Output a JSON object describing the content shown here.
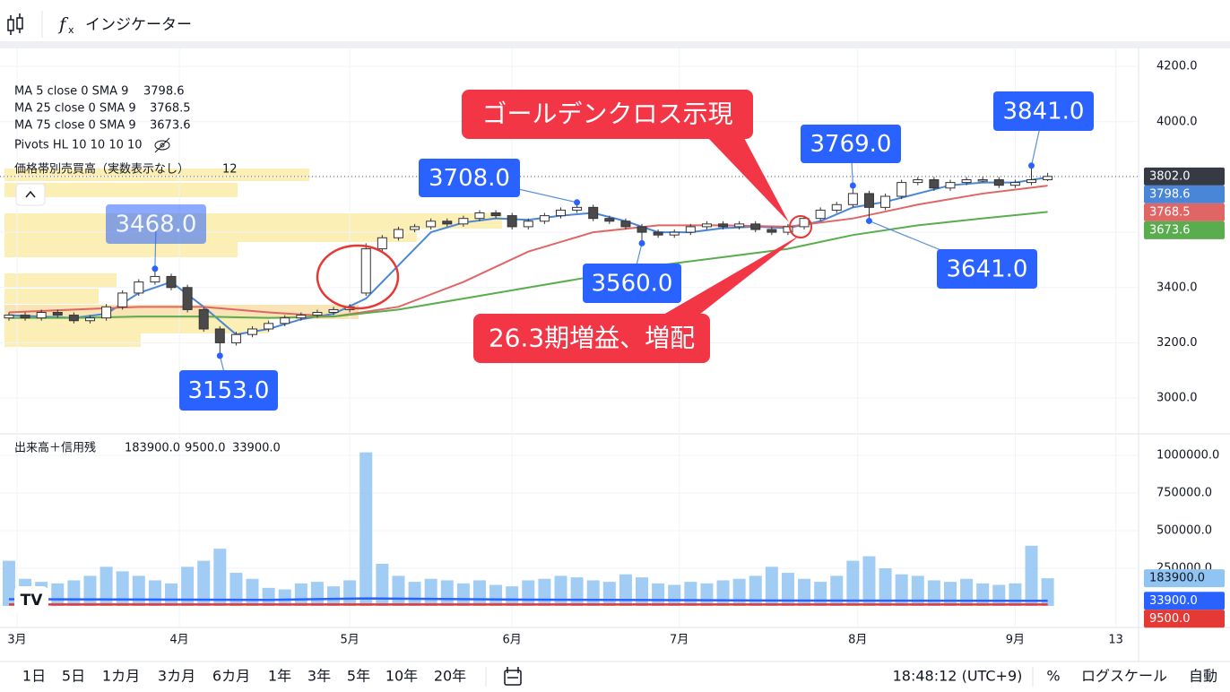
{
  "ui": {
    "indicators": "インジケーター",
    "ranges": [
      "1日",
      "5日",
      "1カ月",
      "3カ月",
      "6カ月",
      "1年",
      "3年",
      "5年",
      "10年",
      "20年"
    ],
    "clock": "18:48:12 (UTC+9)",
    "percent": "%",
    "log_scale": "ログスケール",
    "auto": "自動"
  },
  "chart_data": [
    {
      "type": "candlestick",
      "xlim": [
        -0.55,
        69.6
      ],
      "xticks": [
        {
          "value": 0.5,
          "label": "3月"
        },
        {
          "value": 10.5,
          "label": "4月"
        },
        {
          "value": 21,
          "label": "5月"
        },
        {
          "value": 31,
          "label": "6月"
        },
        {
          "value": 41.3,
          "label": "7月"
        },
        {
          "value": 52.3,
          "label": "8月"
        },
        {
          "value": 62,
          "label": "9月"
        },
        {
          "value": 68.2,
          "label": "13"
        }
      ],
      "ylim": [
        2877,
        4262
      ],
      "yticks": [
        {
          "value": 3000,
          "label": "3000.0"
        },
        {
          "value": 3200,
          "label": "3200.0"
        },
        {
          "value": 3400,
          "label": "3400.0"
        },
        {
          "value": 3600,
          "label": "3600.0"
        },
        {
          "value": 3800,
          "label": "3800.0"
        },
        {
          "value": 4000,
          "label": "4000.0"
        },
        {
          "value": 4200,
          "label": "4200.0"
        }
      ],
      "grid": true,
      "up_color": "#ffffff",
      "down_color": "#4a4a4a",
      "ohlc": [
        [
          3290,
          3310,
          3280,
          3300
        ],
        [
          3300,
          3310,
          3280,
          3290
        ],
        [
          3290,
          3320,
          3280,
          3310
        ],
        [
          3310,
          3320,
          3290,
          3300
        ],
        [
          3300,
          3310,
          3270,
          3280
        ],
        [
          3280,
          3300,
          3270,
          3290
        ],
        [
          3290,
          3340,
          3280,
          3330
        ],
        [
          3330,
          3390,
          3320,
          3380
        ],
        [
          3380,
          3430,
          3370,
          3420
        ],
        [
          3420,
          3468,
          3410,
          3440
        ],
        [
          3440,
          3450,
          3390,
          3400
        ],
        [
          3400,
          3410,
          3310,
          3320
        ],
        [
          3320,
          3330,
          3240,
          3250
        ],
        [
          3250,
          3260,
          3153,
          3200
        ],
        [
          3200,
          3240,
          3190,
          3230
        ],
        [
          3230,
          3260,
          3220,
          3250
        ],
        [
          3250,
          3280,
          3240,
          3270
        ],
        [
          3270,
          3300,
          3260,
          3290
        ],
        [
          3290,
          3310,
          3280,
          3300
        ],
        [
          3300,
          3320,
          3290,
          3310
        ],
        [
          3310,
          3330,
          3300,
          3320
        ],
        [
          3320,
          3340,
          3310,
          3330
        ],
        [
          3380,
          3560,
          3370,
          3540
        ],
        [
          3540,
          3590,
          3530,
          3580
        ],
        [
          3580,
          3620,
          3570,
          3610
        ],
        [
          3610,
          3630,
          3600,
          3620
        ],
        [
          3620,
          3650,
          3610,
          3640
        ],
        [
          3640,
          3650,
          3620,
          3630
        ],
        [
          3630,
          3660,
          3620,
          3650
        ],
        [
          3650,
          3680,
          3640,
          3670
        ],
        [
          3670,
          3680,
          3650,
          3660
        ],
        [
          3660,
          3670,
          3610,
          3620
        ],
        [
          3620,
          3650,
          3610,
          3640
        ],
        [
          3640,
          3670,
          3630,
          3660
        ],
        [
          3660,
          3690,
          3650,
          3680
        ],
        [
          3680,
          3708,
          3670,
          3690
        ],
        [
          3690,
          3700,
          3640,
          3650
        ],
        [
          3650,
          3660,
          3630,
          3640
        ],
        [
          3640,
          3650,
          3610,
          3620
        ],
        [
          3620,
          3630,
          3560,
          3600
        ],
        [
          3600,
          3610,
          3580,
          3590
        ],
        [
          3590,
          3610,
          3580,
          3600
        ],
        [
          3600,
          3630,
          3590,
          3620
        ],
        [
          3620,
          3640,
          3610,
          3630
        ],
        [
          3630,
          3640,
          3610,
          3620
        ],
        [
          3620,
          3640,
          3610,
          3630
        ],
        [
          3630,
          3640,
          3600,
          3610
        ],
        [
          3610,
          3620,
          3590,
          3600
        ],
        [
          3600,
          3630,
          3590,
          3620
        ],
        [
          3620,
          3660,
          3610,
          3650
        ],
        [
          3650,
          3690,
          3640,
          3680
        ],
        [
          3680,
          3710,
          3670,
          3700
        ],
        [
          3700,
          3769,
          3690,
          3740
        ],
        [
          3740,
          3750,
          3641,
          3690
        ],
        [
          3690,
          3740,
          3680,
          3730
        ],
        [
          3730,
          3790,
          3720,
          3780
        ],
        [
          3780,
          3800,
          3770,
          3790
        ],
        [
          3790,
          3800,
          3750,
          3760
        ],
        [
          3760,
          3790,
          3750,
          3780
        ],
        [
          3780,
          3800,
          3770,
          3790
        ],
        [
          3790,
          3800,
          3780,
          3790
        ],
        [
          3790,
          3800,
          3760,
          3770
        ],
        [
          3770,
          3790,
          3760,
          3780
        ],
        [
          3780,
          3841,
          3770,
          3790
        ],
        [
          3790,
          3815,
          3785,
          3802
        ]
      ],
      "last_label": "3802.0",
      "last_color": "#363a45",
      "ma": [
        {
          "name": "MA 5 close 0 SMA 9",
          "color": "#4a86d8",
          "last_label": "3798.6",
          "x": [
            0,
            2,
            4,
            6,
            8,
            10,
            12,
            14,
            16,
            18,
            20,
            22,
            24,
            26,
            28,
            30,
            32,
            34,
            36,
            38,
            40,
            42,
            44,
            46,
            48,
            50,
            52,
            54,
            56,
            58,
            60,
            62,
            64
          ],
          "values": [
            3300,
            3295,
            3290,
            3305,
            3380,
            3420,
            3330,
            3230,
            3250,
            3285,
            3305,
            3360,
            3480,
            3600,
            3635,
            3650,
            3645,
            3660,
            3670,
            3640,
            3600,
            3600,
            3615,
            3620,
            3615,
            3640,
            3690,
            3710,
            3740,
            3770,
            3780,
            3780,
            3798.6
          ]
        },
        {
          "name": "MA 25 close 0 SMA 9",
          "color": "#e06666",
          "last_label": "3768.5",
          "x": [
            0,
            4,
            8,
            12,
            16,
            20,
            24,
            28,
            32,
            36,
            40,
            44,
            48,
            52,
            56,
            60,
            64
          ],
          "values": [
            3310,
            3320,
            3330,
            3330,
            3310,
            3295,
            3330,
            3420,
            3530,
            3600,
            3625,
            3625,
            3620,
            3650,
            3700,
            3740,
            3768.5
          ]
        },
        {
          "name": "MA 75 close 0 SMA 9",
          "color": "#5aad4e",
          "last_label": "3673.6",
          "x": [
            0,
            4,
            8,
            12,
            16,
            20,
            24,
            28,
            32,
            36,
            40,
            44,
            48,
            52,
            56,
            60,
            64
          ],
          "values": [
            3290,
            3290,
            3295,
            3295,
            3290,
            3295,
            3320,
            3360,
            3400,
            3440,
            3480,
            3510,
            3540,
            3590,
            3625,
            3650,
            3673.6
          ]
        }
      ],
      "pivots": "Pivots HL 10 10 10 10",
      "volume_profile": {
        "name": "価格帯別売買高（実数表示なし）",
        "rows": 12
      },
      "callouts": [
        {
          "x": 9,
          "value": 3468,
          "label": "3468.0"
        },
        {
          "x": 13,
          "value": 3153,
          "label": "3153.0"
        },
        {
          "x": 35,
          "value": 3708,
          "label": "3708.0"
        },
        {
          "x": 39,
          "value": 3560,
          "label": "3560.0"
        },
        {
          "x": 52,
          "value": 3769,
          "label": "3769.0"
        },
        {
          "x": 53,
          "value": 3641,
          "label": "3641.0"
        },
        {
          "x": 63,
          "value": 3841,
          "label": "3841.0"
        }
      ],
      "notes": [
        "ゴールデンクロス示現",
        "26.3期増益、増配"
      ]
    },
    {
      "type": "bar",
      "title": "出来高＋信用残",
      "ylim": [
        0,
        1119000
      ],
      "yticks": [
        {
          "value": 250000,
          "label": "250000.0"
        },
        {
          "value": 500000,
          "label": "500000.0"
        },
        {
          "value": 750000,
          "label": "750000.0"
        },
        {
          "value": 1000000,
          "label": "1000000.0"
        }
      ],
      "series": [
        {
          "color": "#90c4f2",
          "last_label": "183900.0",
          "values": [
            300000,
            180000,
            160000,
            150000,
            170000,
            200000,
            260000,
            230000,
            200000,
            170000,
            150000,
            260000,
            300000,
            380000,
            220000,
            180000,
            120000,
            110000,
            150000,
            160000,
            130000,
            170000,
            1020000,
            280000,
            200000,
            160000,
            180000,
            170000,
            150000,
            170000,
            140000,
            130000,
            170000,
            180000,
            200000,
            190000,
            170000,
            160000,
            210000,
            190000,
            150000,
            140000,
            160000,
            150000,
            170000,
            180000,
            200000,
            260000,
            220000,
            180000,
            160000,
            200000,
            300000,
            330000,
            250000,
            210000,
            200000,
            170000,
            160000,
            180000,
            150000,
            140000,
            150000,
            400000,
            183900
          ]
        },
        {
          "color": "#e53935",
          "last_label": "9500.0",
          "x": [
            0,
            64
          ],
          "values": [
            9500,
            9500
          ]
        },
        {
          "color": "#2962ff",
          "last_label": "33900.0",
          "x": [
            0,
            16,
            22,
            32,
            48,
            64
          ],
          "values": [
            45000,
            40000,
            50000,
            42000,
            36000,
            33900
          ]
        }
      ]
    }
  ]
}
